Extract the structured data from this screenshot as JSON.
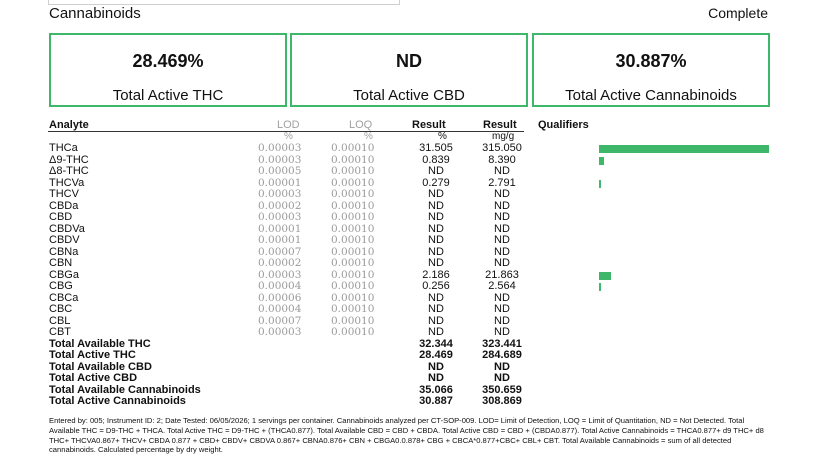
{
  "header": {
    "section_title": "Cannabinoids",
    "status": "Complete"
  },
  "summary": [
    {
      "value": "28.469%",
      "label": "Total Active THC"
    },
    {
      "value": "ND",
      "label": "Total Active CBD"
    },
    {
      "value": "30.887%",
      "label": "Total Active Cannabinoids"
    }
  ],
  "columns": {
    "analyte": "Analyte",
    "lod": "LOD",
    "loq": "LOQ",
    "result_pct": "Result",
    "result_mg": "Result",
    "qualifiers": "Qualifiers",
    "lod_unit": "%",
    "loq_unit": "%",
    "pct_unit": "%",
    "mg_unit": "mg/g"
  },
  "bar_scale_max_pct": 31.505,
  "bar_color": "#3fb76b",
  "analytes": [
    {
      "name": "THCa",
      "lod": "0.00003",
      "loq": "0.00010",
      "pct": "31.505",
      "mg": "315.050",
      "bar_pct": 31.505
    },
    {
      "name": "Δ9-THC",
      "lod": "0.00003",
      "loq": "0.00010",
      "pct": "0.839",
      "mg": "8.390",
      "bar_pct": 0.839
    },
    {
      "name": "Δ8-THC",
      "lod": "0.00005",
      "loq": "0.00010",
      "pct": "ND",
      "mg": "ND",
      "bar_pct": 0
    },
    {
      "name": "THCVa",
      "lod": "0.00001",
      "loq": "0.00010",
      "pct": "0.279",
      "mg": "2.791",
      "bar_pct": 0.279
    },
    {
      "name": "THCV",
      "lod": "0.00003",
      "loq": "0.00010",
      "pct": "ND",
      "mg": "ND",
      "bar_pct": 0
    },
    {
      "name": "CBDa",
      "lod": "0.00002",
      "loq": "0.00010",
      "pct": "ND",
      "mg": "ND",
      "bar_pct": 0
    },
    {
      "name": "CBD",
      "lod": "0.00003",
      "loq": "0.00010",
      "pct": "ND",
      "mg": "ND",
      "bar_pct": 0
    },
    {
      "name": "CBDVa",
      "lod": "0.00001",
      "loq": "0.00010",
      "pct": "ND",
      "mg": "ND",
      "bar_pct": 0
    },
    {
      "name": "CBDV",
      "lod": "0.00001",
      "loq": "0.00010",
      "pct": "ND",
      "mg": "ND",
      "bar_pct": 0
    },
    {
      "name": "CBNa",
      "lod": "0.00007",
      "loq": "0.00010",
      "pct": "ND",
      "mg": "ND",
      "bar_pct": 0
    },
    {
      "name": "CBN",
      "lod": "0.00002",
      "loq": "0.00010",
      "pct": "ND",
      "mg": "ND",
      "bar_pct": 0
    },
    {
      "name": "CBGa",
      "lod": "0.00003",
      "loq": "0.00010",
      "pct": "2.186",
      "mg": "21.863",
      "bar_pct": 2.186
    },
    {
      "name": "CBG",
      "lod": "0.00004",
      "loq": "0.00010",
      "pct": "0.256",
      "mg": "2.564",
      "bar_pct": 0.256
    },
    {
      "name": "CBCa",
      "lod": "0.00006",
      "loq": "0.00010",
      "pct": "ND",
      "mg": "ND",
      "bar_pct": 0
    },
    {
      "name": "CBC",
      "lod": "0.00004",
      "loq": "0.00010",
      "pct": "ND",
      "mg": "ND",
      "bar_pct": 0
    },
    {
      "name": "CBL",
      "lod": "0.00007",
      "loq": "0.00010",
      "pct": "ND",
      "mg": "ND",
      "bar_pct": 0
    },
    {
      "name": "CBT",
      "lod": "0.00003",
      "loq": "0.00010",
      "pct": "ND",
      "mg": "ND",
      "bar_pct": 0
    }
  ],
  "totals": [
    {
      "name": "Total Available THC",
      "pct": "32.344",
      "mg": "323.441"
    },
    {
      "name": "Total Active THC",
      "pct": "28.469",
      "mg": "284.689"
    },
    {
      "name": "Total Available CBD",
      "pct": "ND",
      "mg": "ND"
    },
    {
      "name": "Total Active CBD",
      "pct": "ND",
      "mg": "ND"
    },
    {
      "name": "Total Available Cannabinoids",
      "pct": "35.066",
      "mg": "350.659"
    },
    {
      "name": "Total Active Cannabinoids",
      "pct": "30.887",
      "mg": "308.869"
    }
  ],
  "footnote": "Entered by: 005; Instrument ID: 2; Date Tested: 06/05/2026; 1 servings per container. Cannabinoids analyzed per CT-SOP-009. LOD= Limit of Detection, LOQ = Limit of Quantitation, ND = Not Detected. Total Available THC = D9-THC + THCA. Total Active THC = D9-THC + (THCA0.877). Total Available CBD = CBD + CBDA. Total Active CBD = CBD + (CBDA0.877). Total Active Cannabinoids = THCA0.877+ d9 THC+ d8 THC+ THCVA0.867+ THCV+ CBDA 0.877 + CBD+ CBDV+ CBDVA 0.867+ CBNA0.876+ CBN + CBGA0.0.878+ CBG + CBCA*0.877+CBC+ CBL+ CBT. Total Available Cannabinoids = sum of all detected cannabinoids. Calculated percentage by dry weight."
}
